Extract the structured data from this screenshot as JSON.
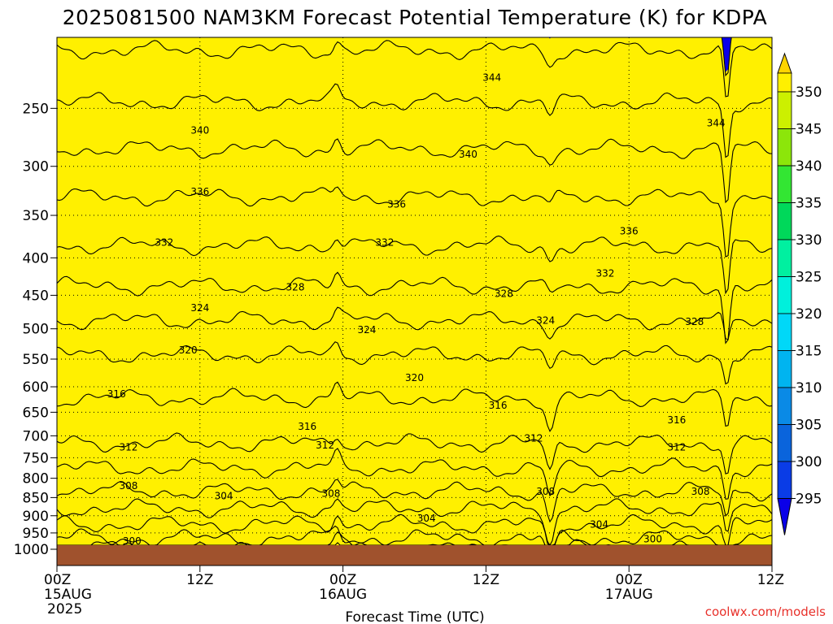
{
  "chart_data": {
    "type": "heatmap",
    "title": "2025081500 NAM3KM Forecast Potential Temperature (K) for KDPA",
    "xlabel": "Forecast Time (UTC)",
    "ylabel": "",
    "x_ticks": [
      {
        "label": "00Z",
        "sub": "15AUG",
        "sub2": "2025",
        "hour": 0
      },
      {
        "label": "12Z",
        "sub": "",
        "sub2": "",
        "hour": 12
      },
      {
        "label": "00Z",
        "sub": "16AUG",
        "sub2": "",
        "hour": 24
      },
      {
        "label": "12Z",
        "sub": "",
        "sub2": "",
        "hour": 36
      },
      {
        "label": "00Z",
        "sub": "17AUG",
        "sub2": "",
        "hour": 48
      },
      {
        "label": "12Z",
        "sub": "",
        "sub2": "",
        "hour": 60
      }
    ],
    "xlim": [
      0,
      60
    ],
    "y_ticks": [
      250,
      300,
      350,
      400,
      450,
      500,
      550,
      600,
      650,
      700,
      750,
      800,
      850,
      900,
      950,
      1000
    ],
    "ylim_hPa": [
      1000,
      200
    ],
    "y_scale": "log-pressure",
    "grid": true,
    "colorbar": {
      "levels": [
        295,
        300,
        305,
        310,
        315,
        320,
        325,
        330,
        335,
        340,
        345,
        350
      ],
      "colors": [
        "#0a00e8",
        "#0a3ce6",
        "#0a64dc",
        "#0a8ae6",
        "#00b4f0",
        "#00d8f8",
        "#00f0dc",
        "#00f0a0",
        "#00d85a",
        "#33e633",
        "#8ce60a",
        "#ccf000",
        "#fff000",
        "#ffd400"
      ]
    },
    "contour_levels": [
      300,
      304,
      308,
      312,
      316,
      320,
      324,
      328,
      332,
      336,
      340,
      344
    ],
    "contour_labels": [
      {
        "value": 344,
        "hour": 36.5,
        "hPa": 227
      },
      {
        "value": 344,
        "hour": 55.3,
        "hPa": 262
      },
      {
        "value": 340,
        "hour": 12.0,
        "hPa": 268
      },
      {
        "value": 340,
        "hour": 34.5,
        "hPa": 289
      },
      {
        "value": 336,
        "hour": 12.0,
        "hPa": 325
      },
      {
        "value": 336,
        "hour": 28.5,
        "hPa": 338
      },
      {
        "value": 336,
        "hour": 48.0,
        "hPa": 368
      },
      {
        "value": 332,
        "hour": 9.0,
        "hPa": 381
      },
      {
        "value": 332,
        "hour": 27.5,
        "hPa": 381
      },
      {
        "value": 332,
        "hour": 46.0,
        "hPa": 420
      },
      {
        "value": 328,
        "hour": 20.0,
        "hPa": 439
      },
      {
        "value": 328,
        "hour": 37.5,
        "hPa": 448
      },
      {
        "value": 328,
        "hour": 53.5,
        "hPa": 489
      },
      {
        "value": 324,
        "hour": 12.0,
        "hPa": 468
      },
      {
        "value": 324,
        "hour": 26.0,
        "hPa": 502
      },
      {
        "value": 324,
        "hour": 41.0,
        "hPa": 487
      },
      {
        "value": 320,
        "hour": 11.0,
        "hPa": 535
      },
      {
        "value": 320,
        "hour": 30.0,
        "hPa": 583
      },
      {
        "value": 316,
        "hour": 5.0,
        "hPa": 614
      },
      {
        "value": 316,
        "hour": 37.0,
        "hPa": 636
      },
      {
        "value": 316,
        "hour": 52.0,
        "hPa": 666
      },
      {
        "value": 316,
        "hour": 21.0,
        "hPa": 680
      },
      {
        "value": 312,
        "hour": 6.0,
        "hPa": 726
      },
      {
        "value": 312,
        "hour": 22.5,
        "hPa": 721
      },
      {
        "value": 312,
        "hour": 40.0,
        "hPa": 706
      },
      {
        "value": 312,
        "hour": 52.0,
        "hPa": 726
      },
      {
        "value": 308,
        "hour": 6.0,
        "hPa": 819
      },
      {
        "value": 308,
        "hour": 23.0,
        "hPa": 839
      },
      {
        "value": 308,
        "hour": 41.0,
        "hPa": 834
      },
      {
        "value": 308,
        "hour": 54.0,
        "hPa": 834
      },
      {
        "value": 304,
        "hour": 14.0,
        "hPa": 846
      },
      {
        "value": 304,
        "hour": 31.0,
        "hPa": 907
      },
      {
        "value": 304,
        "hour": 45.5,
        "hPa": 925
      },
      {
        "value": 300,
        "hour": 6.3,
        "hPa": 975
      },
      {
        "value": 300,
        "hour": 50.0,
        "hPa": 968
      }
    ]
  },
  "credit": "coolwx.com/models"
}
